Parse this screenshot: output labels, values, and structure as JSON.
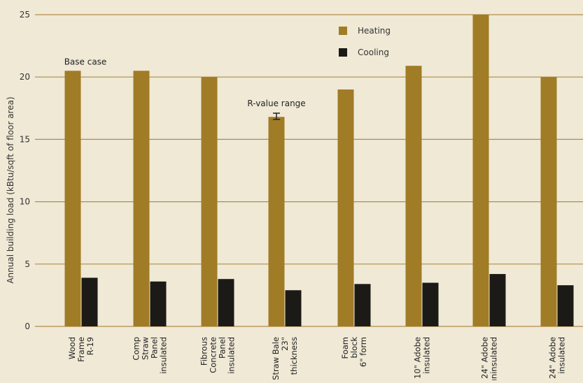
{
  "chart_data": {
    "type": "bar",
    "ylabel": "Annual building load (kBtu/sqft of floor area)",
    "ylim": [
      0,
      25
    ],
    "yticks": [
      0,
      5,
      10,
      15,
      20,
      25
    ],
    "grid": true,
    "legend_position": "top-right",
    "categories": [
      [
        "Wood",
        "Frame",
        "R-19"
      ],
      [
        "Comp",
        "Straw",
        "Panel",
        "insulated"
      ],
      [
        "Fibrous",
        "Concrete",
        "Panel",
        "insulated"
      ],
      [
        "Straw Bale",
        "23\"",
        "thickness"
      ],
      [
        "Foam",
        "block",
        "6\" form"
      ],
      [
        "10\" Adobe",
        "insulated"
      ],
      [
        "24\" Adobe",
        "uninsulated"
      ],
      [
        "24\" Adobe",
        "insulated"
      ]
    ],
    "series": [
      {
        "name": "Heating",
        "color": "#a17c26",
        "values": [
          20.5,
          20.5,
          20.0,
          16.8,
          19.0,
          20.9,
          25.0,
          20.0
        ]
      },
      {
        "name": "Cooling",
        "color": "#1c1a16",
        "values": [
          3.9,
          3.6,
          3.8,
          2.9,
          3.4,
          3.5,
          4.2,
          3.3
        ]
      }
    ],
    "annotations": [
      {
        "text": "Base case",
        "category_index": 0
      },
      {
        "text": "R-value range",
        "category_index": 3,
        "range": [
          16.6,
          17.1
        ]
      }
    ]
  },
  "colors": {
    "background": "#efe9d6",
    "gridline": "#b58a4a",
    "axis_text": "#333333"
  }
}
